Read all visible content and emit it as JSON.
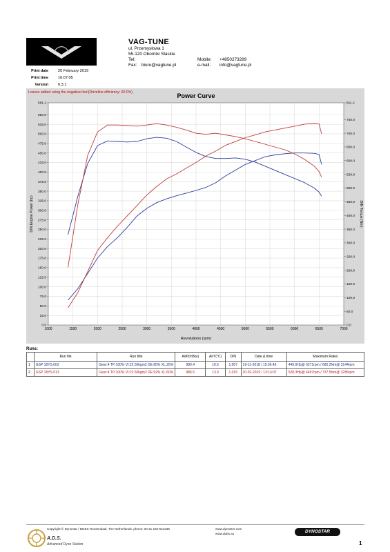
{
  "header": {
    "company": "VAG-TUNE",
    "address_line1": "ul. Przemysłowa 1",
    "address_line2": "55-120 Oborniki Slaskie",
    "tel_label": "Tel:",
    "fax_label": "Fax:",
    "fax_value": "biuro@vagtune.pl",
    "mobile_label": "Mobile:",
    "mobile_value": "+4850273289",
    "email_label": "e-mail:",
    "email_value": "info@vagtune.pl"
  },
  "print_info": {
    "date_label": "Print date",
    "date_value": "20 February 2019",
    "time_label": "Print time",
    "time_value": "16:07:05",
    "version_label": "Version",
    "version_value": "6.3.1"
  },
  "losses_note": "Losses added using the negative line!(Driveline efficiency: 92.0%)",
  "chart_data": {
    "type": "line",
    "title": "Power Curve",
    "xlabel": "Revolutions (rpm)",
    "ylabel_left": "DIN Engine Power (hp)",
    "ylabel_right": "DIN Torque (Nm)",
    "xlim": [
      1000,
      7000
    ],
    "ylim_left": [
      0,
      581.2
    ],
    "ylim_right": [
      0,
      811.2
    ],
    "x_ticks": [
      "1000",
      "1500",
      "2000",
      "2500",
      "3000",
      "3500",
      "4000",
      "4500",
      "5000",
      "5500",
      "6000",
      "6500",
      "7000"
    ],
    "y_left_ticks": [
      "0.0",
      "25.0",
      "50.0",
      "75.0",
      "100.0",
      "125.0",
      "150.0",
      "175.0",
      "200.0",
      "225.0",
      "250.0",
      "275.0",
      "300.0",
      "325.0",
      "350.0",
      "375.0",
      "400.0",
      "425.0",
      "450.0",
      "475.0",
      "500.0",
      "525.0",
      "550.0",
      "581.2"
    ],
    "y_right_ticks": [
      "0.0",
      "50.0",
      "100.0",
      "150.0",
      "200.0",
      "250.0",
      "300.0",
      "350.0",
      "400.0",
      "450.0",
      "500.0",
      "550.0",
      "600.0",
      "650.0",
      "700.0",
      "750.0",
      "811.2"
    ],
    "grid": true,
    "series": [
      {
        "name": "GSP 18YS.002",
        "kind": "power",
        "axis": "left",
        "color": "#2b3a9c",
        "x": [
          1400,
          1600,
          1800,
          2000,
          2200,
          2400,
          2600,
          2800,
          3000,
          3200,
          3400,
          3600,
          3800,
          4000,
          4200,
          4400,
          4600,
          4800,
          5000,
          5200,
          5400,
          5600,
          5800,
          6000,
          6200,
          6400,
          6500,
          6550
        ],
        "y": [
          65,
          95,
          135,
          175,
          205,
          228,
          255,
          285,
          305,
          320,
          330,
          338,
          345,
          352,
          360,
          372,
          390,
          405,
          420,
          430,
          440,
          445,
          448,
          450,
          450,
          449,
          446,
          420
        ]
      },
      {
        "name": "GSP 18YS.002",
        "kind": "torque",
        "axis": "right",
        "color": "#2b3a9c",
        "x": [
          1400,
          1600,
          1800,
          2000,
          2200,
          2400,
          2600,
          2800,
          3000,
          3200,
          3400,
          3600,
          3800,
          4000,
          4200,
          4400,
          4600,
          4800,
          5000,
          5200,
          5400,
          5600,
          5800,
          6000,
          6200,
          6400,
          6500,
          6550
        ],
        "y": [
          330,
          470,
          590,
          655,
          672,
          670,
          668,
          670,
          680,
          685,
          682,
          670,
          650,
          630,
          615,
          608,
          608,
          610,
          605,
          595,
          580,
          565,
          550,
          535,
          520,
          500,
          485,
          470
        ]
      },
      {
        "name": "GSP 18YS.013",
        "kind": "power",
        "axis": "left",
        "color": "#c23a3a",
        "x": [
          1400,
          1600,
          1800,
          2000,
          2200,
          2400,
          2600,
          2800,
          3000,
          3200,
          3400,
          3600,
          3800,
          4000,
          4200,
          4400,
          4600,
          4800,
          5000,
          5200,
          5400,
          5600,
          5800,
          6000,
          6200,
          6400,
          6500,
          6550
        ],
        "y": [
          45,
          85,
          140,
          195,
          228,
          258,
          285,
          312,
          340,
          362,
          382,
          395,
          410,
          425,
          442,
          455,
          470,
          480,
          490,
          497,
          505,
          510,
          515,
          520,
          525,
          528,
          526,
          500
        ]
      },
      {
        "name": "GSP 18YS.013",
        "kind": "torque",
        "axis": "right",
        "color": "#c23a3a",
        "x": [
          1400,
          1600,
          1800,
          2000,
          2200,
          2400,
          2600,
          2800,
          3000,
          3200,
          3400,
          3600,
          3800,
          4000,
          4200,
          4400,
          4600,
          4800,
          5000,
          5200,
          5400,
          5600,
          5800,
          6000,
          6200,
          6400,
          6500,
          6550
        ],
        "y": [
          210,
          440,
          620,
          705,
          730,
          730,
          728,
          726,
          730,
          735,
          730,
          722,
          712,
          700,
          696,
          700,
          694,
          688,
          680,
          670,
          660,
          650,
          640,
          625,
          605,
          580,
          560,
          540
        ]
      }
    ]
  },
  "runs": {
    "label": "Runs:",
    "columns": [
      "",
      "Run file",
      "Run title",
      "AirP(mBar)",
      "AirT(°C)",
      "DIN",
      "Date & time",
      "Maximum Rates"
    ],
    "rows": [
      {
        "idx": "1",
        "file": "GSP 18YS.002",
        "title": "Gear:4 TP:100% VI:22.50kgm2 DE:85% XL:25%",
        "airp": "989.4",
        "airt": "10.5",
        "din": "1.007",
        "datetime": "19-11-2018 / 15:36:45",
        "rates": "449.6Hp@ 6271rpm / 685.2Nm@ 3144rpm"
      },
      {
        "idx": "2",
        "file": "GSP 18YS.013",
        "title": "Gear:4 TP:100% VI:22.50kgm2 DE:92% XL:60%",
        "airp": "986.5",
        "airt": "13.3",
        "din": "1.015",
        "datetime": "20-02-2019 / 13:14:07",
        "rates": "528.3Hp@ 6497rpm / 737.5Nm@ 3286rpm"
      }
    ]
  },
  "footer": {
    "copyright": "Copyright © Dynostar / DDES  Roosendaal, The Netherlands, phone: 00 31 165-521336",
    "url1": "www.dynoster.com",
    "url2": "www.ddes.eu",
    "ads_title": "A.D.S.",
    "ads_sub": "Advanced Dyno Station",
    "dynostar": "DYNOSTAR",
    "page": "1"
  },
  "colors": {
    "blue": "#2b3a9c",
    "red": "#c23a3a",
    "grid": "#c9c9c9",
    "plot_bg": "#ffffff"
  }
}
